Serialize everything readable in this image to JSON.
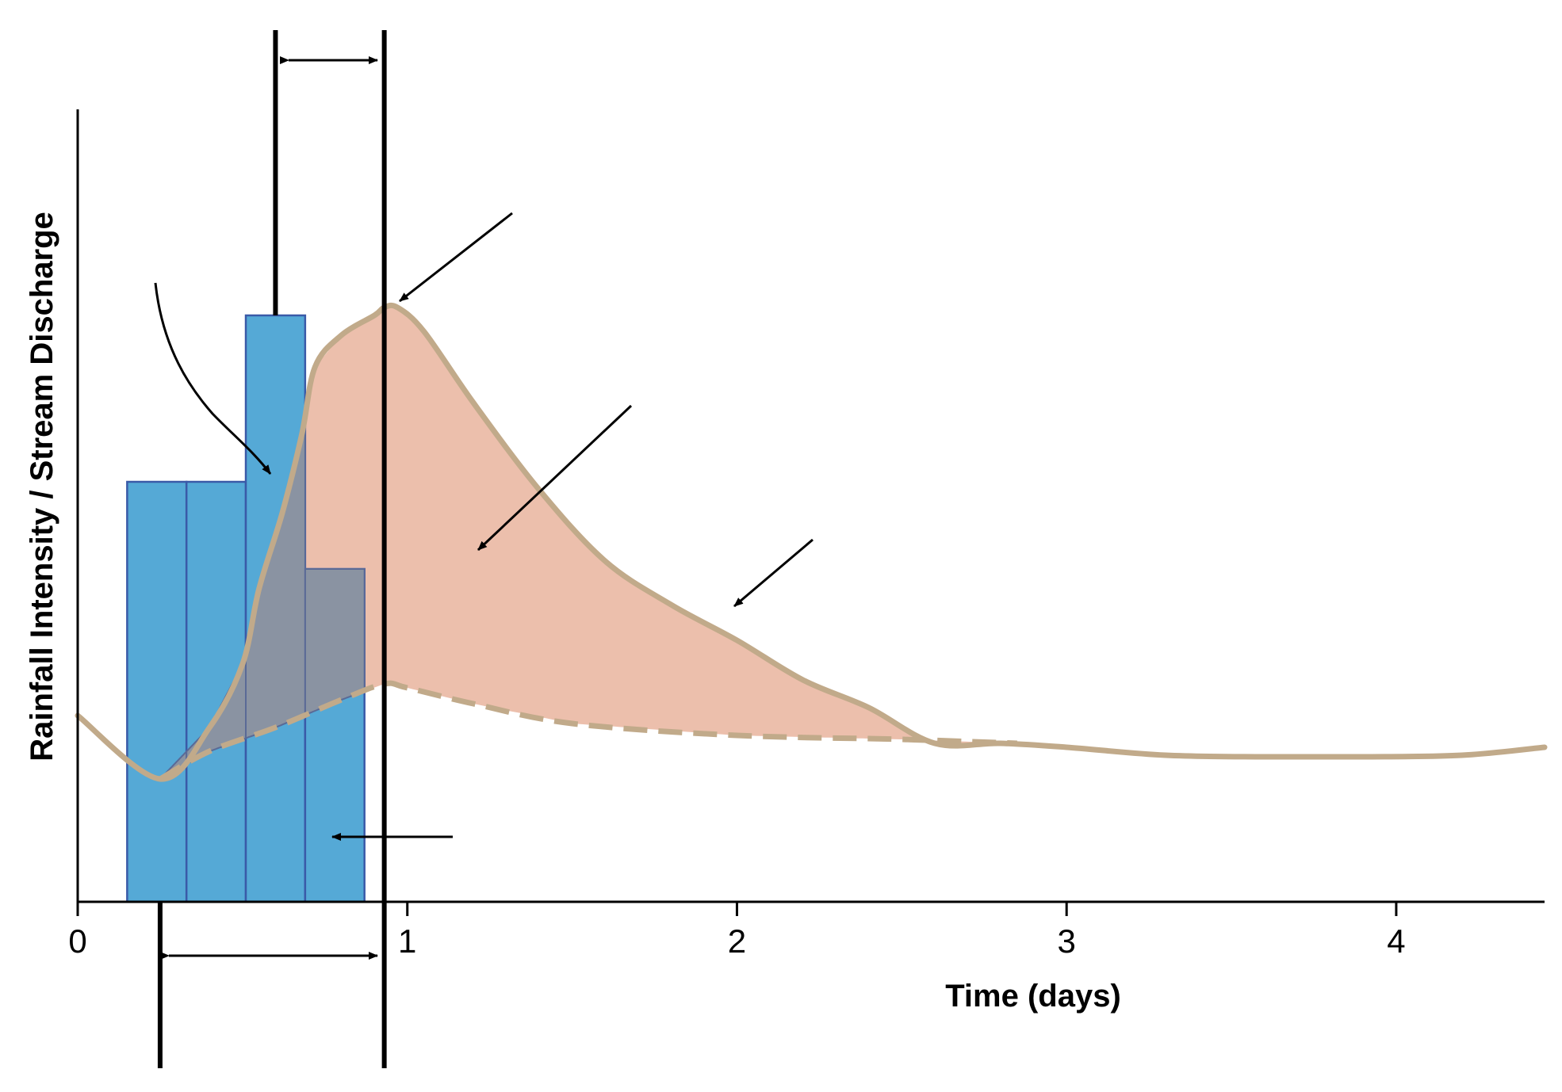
{
  "chart_data": {
    "type": "area",
    "title": "",
    "xlabel": "Time (days)",
    "ylabel": "Rainfall Intensity / Stream Discharge",
    "xlim": [
      0,
      4.45
    ],
    "ylim": [
      0,
      1
    ],
    "x_ticks": [
      "0",
      "1",
      "2",
      "3",
      "4"
    ],
    "grid": false,
    "legend": "none",
    "colors": {
      "rainfall": "#55a9d6",
      "runoff": "#ecbfac",
      "overlap": "#8a93a2",
      "hydrograph": "#c1aa8a",
      "baseflow": "#c1aa8a",
      "markers": "#000000"
    },
    "series": [
      {
        "type": "bar",
        "bars": [
          {
            "x0": 0.15,
            "x1": 0.33,
            "value": 0.53
          },
          {
            "x0": 0.33,
            "x1": 0.51,
            "value": 0.53
          },
          {
            "x0": 0.51,
            "x1": 0.69,
            "value": 0.74
          },
          {
            "x0": 0.69,
            "x1": 0.87,
            "value": 0.42
          }
        ]
      },
      {
        "type": "line",
        "x": [
          0.0,
          0.25,
          0.4,
          0.5,
          0.55,
          0.62,
          0.68,
          0.72,
          0.8,
          0.9,
          0.93,
          0.97,
          1.05,
          1.2,
          1.4,
          1.6,
          1.8,
          2.0,
          2.2,
          2.4,
          2.6,
          2.8,
          3.0,
          3.3,
          3.6,
          3.9,
          4.2,
          4.45
        ],
        "y": [
          0.235,
          0.155,
          0.22,
          0.3,
          0.395,
          0.49,
          0.59,
          0.675,
          0.715,
          0.74,
          0.75,
          0.75,
          0.72,
          0.63,
          0.52,
          0.43,
          0.375,
          0.33,
          0.28,
          0.245,
          0.2,
          0.2,
          0.195,
          0.185,
          0.183,
          0.183,
          0.185,
          0.195
        ]
      },
      {
        "type": "line",
        "dashed": true,
        "x": [
          0.25,
          0.4,
          0.6,
          0.8,
          0.93,
          1.0,
          1.2,
          1.5,
          2.0,
          2.5,
          2.85
        ],
        "y": [
          0.155,
          0.19,
          0.22,
          0.255,
          0.275,
          0.27,
          0.25,
          0.225,
          0.21,
          0.205,
          0.2
        ]
      }
    ],
    "vertical_markers": [
      {
        "x": 0.25,
        "y0": -0.21,
        "y1": 0
      },
      {
        "x": 0.6,
        "y0": 0.74,
        "y1": 1.1
      },
      {
        "x": 0.93,
        "y0": -0.21,
        "y1": 1.1
      }
    ]
  }
}
